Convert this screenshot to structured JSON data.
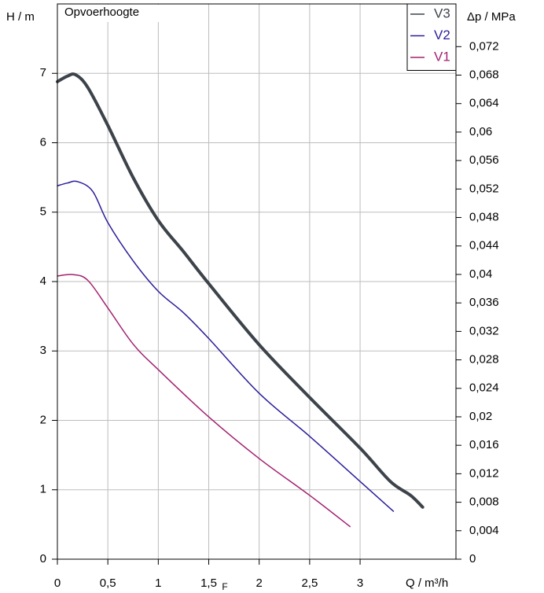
{
  "chart_data": {
    "type": "line",
    "title": "Opvoerhoogte",
    "xlabel": "Q / m³/h",
    "ylabel": "H / m",
    "y2label": "Δp / MPa",
    "annotation": "F",
    "xlim": [
      0,
      3.95
    ],
    "ylim": [
      0,
      8
    ],
    "y2lim": [
      0,
      0.078
    ],
    "xticks": [
      0,
      {
        "value": 0.5,
        "label": "0,5"
      },
      1,
      {
        "value": 1.5,
        "label": "1,5"
      },
      2,
      {
        "value": 2.5,
        "label": "2,5"
      },
      3
    ],
    "yticks": [
      0,
      1,
      2,
      3,
      4,
      5,
      6,
      7
    ],
    "y2ticks": [
      0,
      {
        "value": 0.004,
        "label": "0,004"
      },
      {
        "value": 0.008,
        "label": "0,008"
      },
      {
        "value": 0.012,
        "label": "0,012"
      },
      {
        "value": 0.016,
        "label": "0,016"
      },
      {
        "value": 0.02,
        "label": "0,02"
      },
      {
        "value": 0.024,
        "label": "0,024"
      },
      {
        "value": 0.028,
        "label": "0,028"
      },
      {
        "value": 0.032,
        "label": "0,032"
      },
      {
        "value": 0.036,
        "label": "0,036"
      },
      {
        "value": 0.04,
        "label": "0,04"
      },
      {
        "value": 0.044,
        "label": "0,044"
      },
      {
        "value": 0.048,
        "label": "0,048"
      },
      {
        "value": 0.052,
        "label": "0,052"
      },
      {
        "value": 0.056,
        "label": "0,056"
      },
      {
        "value": 0.06,
        "label": "0,06"
      },
      {
        "value": 0.064,
        "label": "0,064"
      },
      {
        "value": 0.068,
        "label": "0,068"
      },
      {
        "value": 0.072,
        "label": "0,072"
      }
    ],
    "grid": true,
    "legend": "top-right",
    "series": [
      {
        "name": "V3",
        "color": "#3d434a",
        "linewidth": 4,
        "x": [
          0,
          0.1,
          0.18,
          0.3,
          0.5,
          0.75,
          1.0,
          1.25,
          1.5,
          2.0,
          2.5,
          3.0,
          3.3,
          3.5,
          3.62
        ],
        "values": [
          6.88,
          6.96,
          6.98,
          6.8,
          6.25,
          5.5,
          4.88,
          4.43,
          3.97,
          3.09,
          2.33,
          1.6,
          1.12,
          0.92,
          0.75
        ]
      },
      {
        "name": "V2",
        "color": "#2a1d9a",
        "linewidth": 1.5,
        "x": [
          0,
          0.1,
          0.2,
          0.35,
          0.5,
          0.75,
          1.0,
          1.25,
          1.5,
          2.0,
          2.5,
          3.0,
          3.33
        ],
        "values": [
          5.38,
          5.42,
          5.44,
          5.3,
          4.85,
          4.3,
          3.86,
          3.55,
          3.18,
          2.39,
          1.77,
          1.12,
          0.69
        ]
      },
      {
        "name": "V1",
        "color": "#a3206f",
        "linewidth": 1.5,
        "x": [
          0,
          0.15,
          0.3,
          0.5,
          0.75,
          1.0,
          1.5,
          2.0,
          2.5,
          2.9
        ],
        "values": [
          4.08,
          4.1,
          4.02,
          3.62,
          3.1,
          2.73,
          2.05,
          1.45,
          0.92,
          0.47
        ]
      }
    ]
  }
}
